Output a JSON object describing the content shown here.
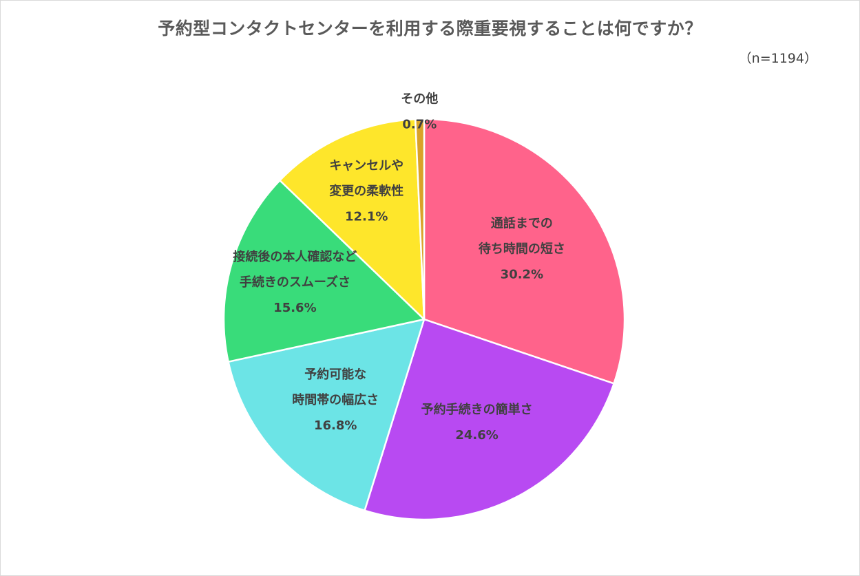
{
  "chart_data": {
    "type": "pie",
    "title": "予約型コンタクトセンターを利用する際重要視することは何ですか？",
    "subtitle": "（n=1194）",
    "slices": [
      {
        "label_lines": [
          "通話までの",
          "待ち時間の短さ"
        ],
        "value": 30.2,
        "value_label": "30.2%",
        "color": "#ff638b"
      },
      {
        "label_lines": [
          "予約手続きの簡単さ"
        ],
        "value": 24.6,
        "value_label": "24.6%",
        "color": "#b84af2"
      },
      {
        "label_lines": [
          "予約可能な",
          "時間帯の幅広さ"
        ],
        "value": 16.8,
        "value_label": "16.8%",
        "color": "#6ce4e6"
      },
      {
        "label_lines": [
          "接続後の本人確認など",
          "手続きのスムーズさ"
        ],
        "value": 15.6,
        "value_label": "15.6%",
        "color": "#39dc7a"
      },
      {
        "label_lines": [
          "キャンセルや",
          "変更の柔軟性"
        ],
        "value": 12.1,
        "value_label": "12.1%",
        "color": "#fee62b"
      },
      {
        "label_lines": [
          "その他"
        ],
        "value": 0.7,
        "value_label": "0.7%",
        "color": "#d9a228"
      }
    ]
  }
}
